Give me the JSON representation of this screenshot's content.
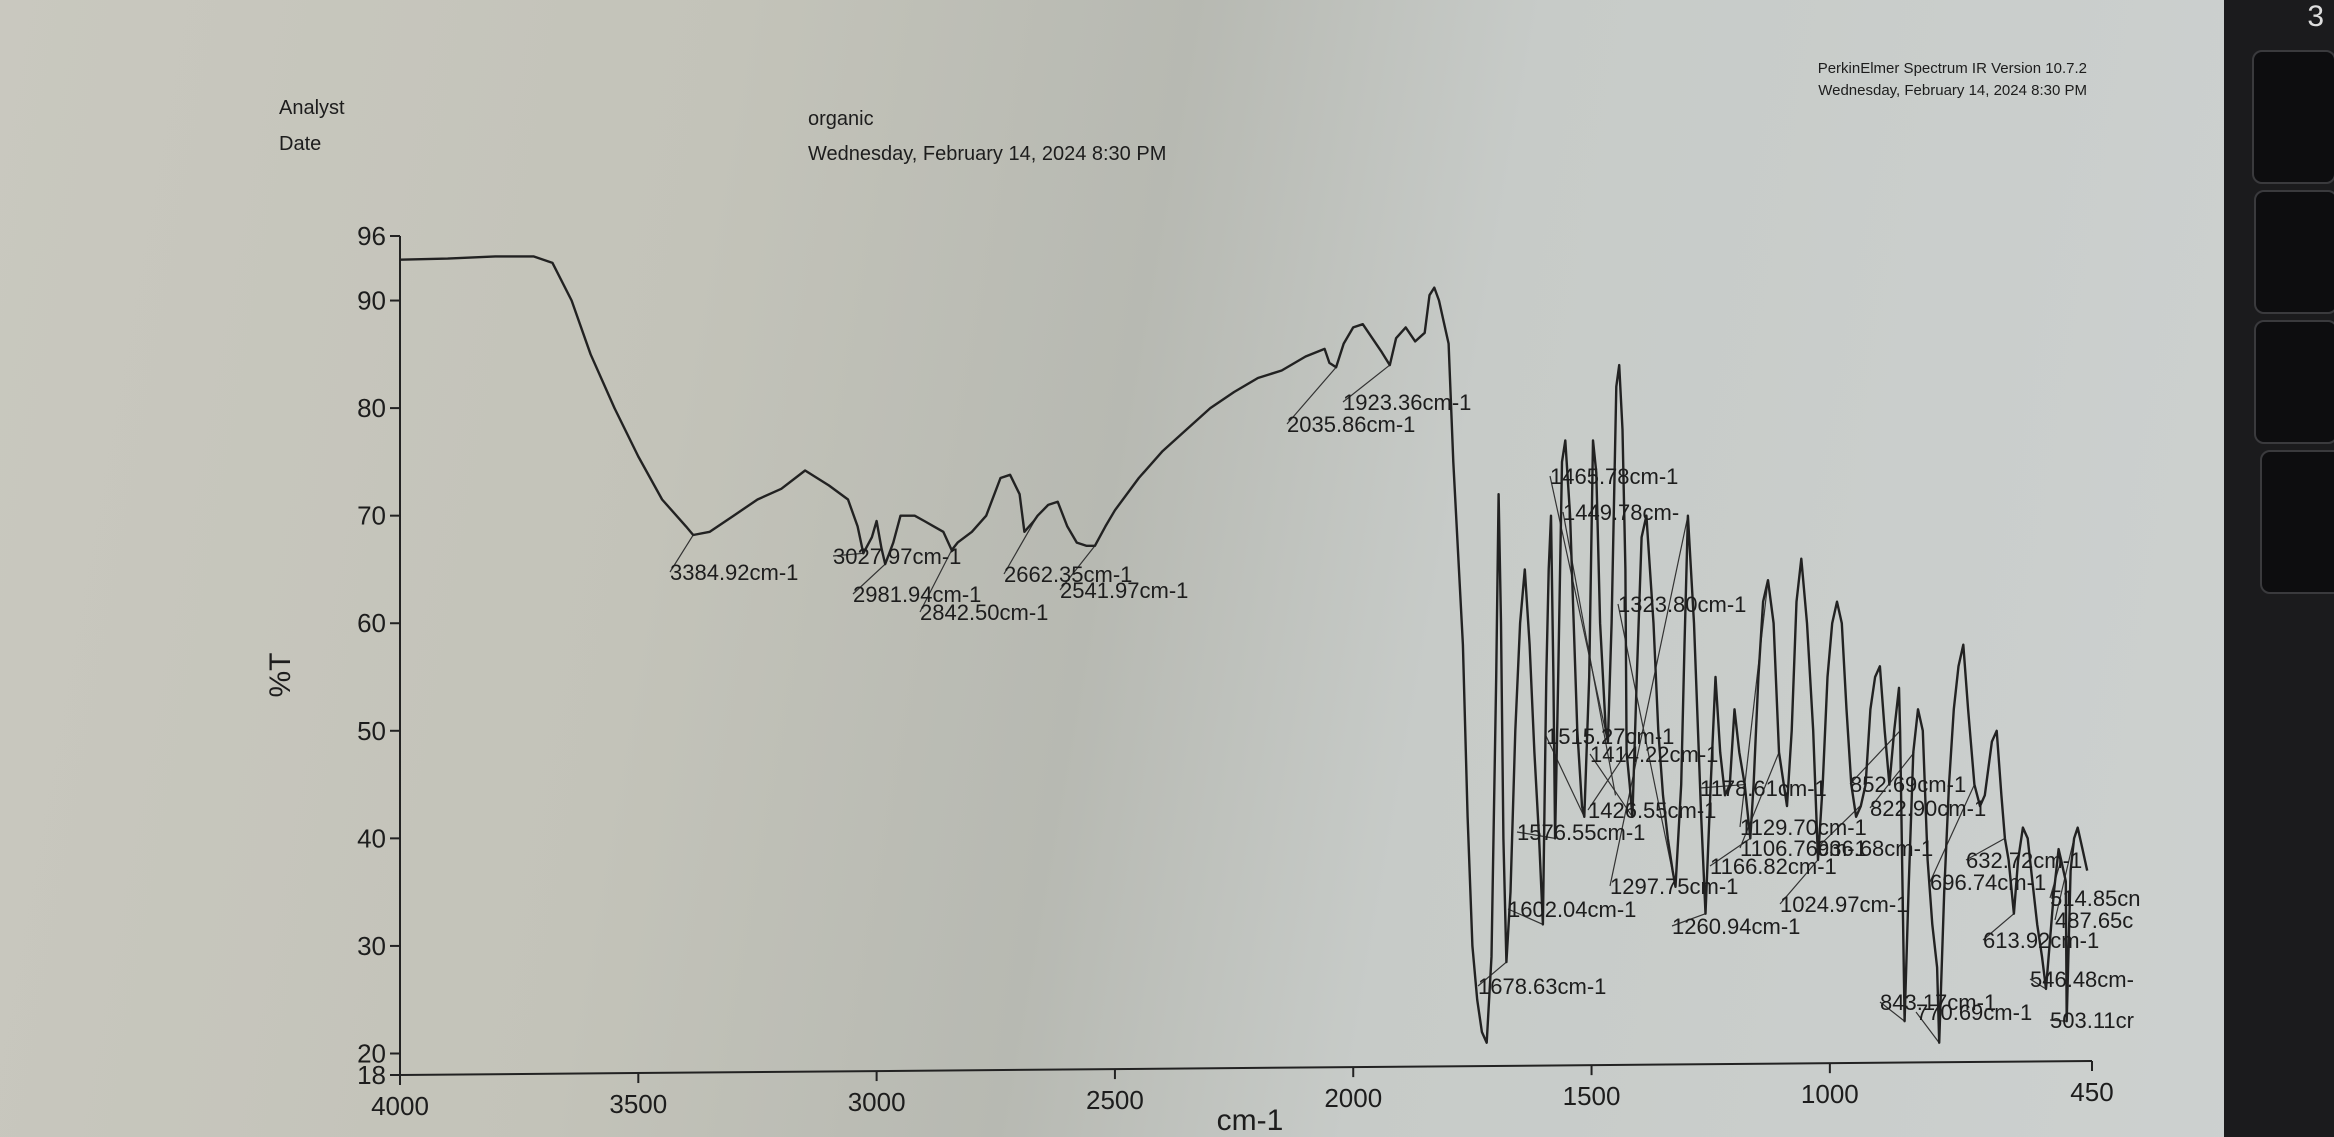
{
  "header": {
    "analyst_label": "Analyst",
    "date_label": "Date",
    "sample_name": "organic",
    "sample_date": "Wednesday, February 14, 2024 8:30 PM",
    "software": "PerkinElmer Spectrum IR Version 10.7.2",
    "software_date": "Wednesday, February 14, 2024 8:30 PM"
  },
  "keyboard": {
    "key_label": "3"
  },
  "chart_data": {
    "type": "line",
    "xlabel": "cm-1",
    "ylabel": "%T",
    "xlim": [
      4000,
      450
    ],
    "ylim": [
      18,
      96
    ],
    "x_ticks": [
      4000,
      3500,
      3000,
      2500,
      2000,
      1500,
      1000,
      450
    ],
    "y_ticks": [
      18,
      20,
      30,
      40,
      50,
      60,
      70,
      80,
      90,
      96
    ],
    "series": [
      {
        "points": [
          [
            4000,
            93.8
          ],
          [
            3900,
            93.9
          ],
          [
            3800,
            94.1
          ],
          [
            3720,
            94.1
          ],
          [
            3680,
            93.5
          ],
          [
            3640,
            90
          ],
          [
            3600,
            85
          ],
          [
            3550,
            80
          ],
          [
            3500,
            75.5
          ],
          [
            3450,
            71.5
          ],
          [
            3400,
            69
          ],
          [
            3384.92,
            68.2
          ],
          [
            3350,
            68.5
          ],
          [
            3300,
            70
          ],
          [
            3250,
            71.5
          ],
          [
            3200,
            72.5
          ],
          [
            3150,
            74.2
          ],
          [
            3100,
            72.8
          ],
          [
            3060,
            71.5
          ],
          [
            3040,
            69
          ],
          [
            3027.97,
            66.5
          ],
          [
            3010,
            68
          ],
          [
            3000,
            69.5
          ],
          [
            2990,
            67
          ],
          [
            2981.94,
            65.5
          ],
          [
            2965,
            67.5
          ],
          [
            2950,
            70
          ],
          [
            2920,
            70
          ],
          [
            2900,
            69.5
          ],
          [
            2880,
            69
          ],
          [
            2860,
            68.5
          ],
          [
            2842.5,
            66.8
          ],
          [
            2830,
            67.5
          ],
          [
            2800,
            68.5
          ],
          [
            2770,
            70
          ],
          [
            2740,
            73.5
          ],
          [
            2720,
            73.8
          ],
          [
            2700,
            72
          ],
          [
            2690,
            68.5
          ],
          [
            2670,
            69.5
          ],
          [
            2662.35,
            70
          ],
          [
            2640,
            71
          ],
          [
            2620,
            71.3
          ],
          [
            2600,
            69
          ],
          [
            2580,
            67.5
          ],
          [
            2560,
            67.2
          ],
          [
            2541.97,
            67.2
          ],
          [
            2520,
            69
          ],
          [
            2500,
            70.5
          ],
          [
            2450,
            73.5
          ],
          [
            2400,
            76
          ],
          [
            2350,
            78
          ],
          [
            2300,
            80
          ],
          [
            2250,
            81.5
          ],
          [
            2200,
            82.8
          ],
          [
            2150,
            83.5
          ],
          [
            2100,
            84.8
          ],
          [
            2060,
            85.5
          ],
          [
            2050,
            84.2
          ],
          [
            2035.86,
            83.8
          ],
          [
            2020,
            86
          ],
          [
            2000,
            87.5
          ],
          [
            1980,
            87.8
          ],
          [
            1960,
            86.5
          ],
          [
            1940,
            85.2
          ],
          [
            1923.36,
            84
          ],
          [
            1910,
            86.5
          ],
          [
            1890,
            87.5
          ],
          [
            1870,
            86.2
          ],
          [
            1850,
            87
          ],
          [
            1840,
            90.5
          ],
          [
            1830,
            91.2
          ],
          [
            1820,
            90
          ],
          [
            1810,
            88
          ],
          [
            1800,
            86
          ],
          [
            1790,
            75
          ],
          [
            1770,
            58
          ],
          [
            1760,
            42
          ],
          [
            1750,
            30
          ],
          [
            1740,
            25
          ],
          [
            1730,
            22
          ],
          [
            1720,
            21
          ],
          [
            1710,
            29
          ],
          [
            1700,
            55
          ],
          [
            1695,
            72
          ],
          [
            1690,
            60
          ],
          [
            1685,
            40
          ],
          [
            1678.63,
            28.5
          ],
          [
            1670,
            35
          ],
          [
            1660,
            50
          ],
          [
            1650,
            60
          ],
          [
            1640,
            65
          ],
          [
            1630,
            58
          ],
          [
            1620,
            48
          ],
          [
            1610,
            40
          ],
          [
            1602.04,
            32
          ],
          [
            1595,
            55
          ],
          [
            1590,
            65
          ],
          [
            1585,
            70
          ],
          [
            1580,
            55
          ],
          [
            1576.55,
            40
          ],
          [
            1570,
            55
          ],
          [
            1562,
            75
          ],
          [
            1555,
            77
          ],
          [
            1545,
            70
          ],
          [
            1530,
            50
          ],
          [
            1520,
            43
          ],
          [
            1515.27,
            42
          ],
          [
            1505,
            55
          ],
          [
            1497,
            77
          ],
          [
            1490,
            74
          ],
          [
            1482,
            60
          ],
          [
            1470,
            50
          ],
          [
            1465.78,
            49
          ],
          [
            1458,
            60
          ],
          [
            1448,
            82
          ],
          [
            1442,
            84
          ],
          [
            1435,
            78
          ],
          [
            1429,
            65
          ],
          [
            1426.55,
            48
          ],
          [
            1420,
            45
          ],
          [
            1414.22,
            42
          ],
          [
            1405,
            55
          ],
          [
            1395,
            68
          ],
          [
            1385,
            70
          ],
          [
            1370,
            60
          ],
          [
            1360,
            50
          ],
          [
            1350,
            44
          ],
          [
            1340,
            40
          ],
          [
            1330,
            37
          ],
          [
            1323.8,
            35.5
          ],
          [
            1312,
            45
          ],
          [
            1305,
            58
          ],
          [
            1297.75,
            70
          ],
          [
            1285,
            60
          ],
          [
            1270,
            42
          ],
          [
            1260.94,
            33
          ],
          [
            1250,
            45
          ],
          [
            1240,
            55
          ],
          [
            1230,
            48
          ],
          [
            1220,
            44
          ],
          [
            1210,
            45
          ],
          [
            1200,
            52
          ],
          [
            1190,
            48
          ],
          [
            1178.61,
            45
          ],
          [
            1166.82,
            40
          ],
          [
            1160,
            45
          ],
          [
            1150,
            55
          ],
          [
            1140,
            62
          ],
          [
            1129.7,
            64
          ],
          [
            1118,
            60
          ],
          [
            1106.76,
            48
          ],
          [
            1090,
            43
          ],
          [
            1080,
            50
          ],
          [
            1070,
            62
          ],
          [
            1060,
            66
          ],
          [
            1048,
            60
          ],
          [
            1035,
            50
          ],
          [
            1024.97,
            38
          ],
          [
            1015,
            45
          ],
          [
            1005,
            55
          ],
          [
            995,
            60
          ],
          [
            985,
            62
          ],
          [
            975,
            60
          ],
          [
            965,
            52
          ],
          [
            955,
            45
          ],
          [
            945,
            42
          ],
          [
            935,
            43
          ],
          [
            925,
            45
          ],
          [
            915,
            52
          ],
          [
            905,
            55
          ],
          [
            895,
            56
          ],
          [
            885,
            50
          ],
          [
            875,
            45
          ],
          [
            865,
            50
          ],
          [
            855,
            54
          ],
          [
            852.69,
            50
          ],
          [
            843.17,
            23
          ],
          [
            835,
            35
          ],
          [
            825,
            48
          ],
          [
            815,
            52
          ],
          [
            805,
            50
          ],
          [
            795,
            38
          ],
          [
            785,
            32
          ],
          [
            775,
            28
          ],
          [
            770.69,
            21
          ],
          [
            760,
            35
          ],
          [
            750,
            45
          ],
          [
            740,
            52
          ],
          [
            730,
            56
          ],
          [
            720,
            58
          ],
          [
            710,
            52
          ],
          [
            696.74,
            45
          ],
          [
            685,
            43
          ],
          [
            675,
            44
          ],
          [
            660,
            49
          ],
          [
            650,
            50
          ],
          [
            640,
            44
          ],
          [
            632.72,
            40
          ],
          [
            625,
            38
          ],
          [
            613.92,
            33
          ],
          [
            605,
            38
          ],
          [
            595,
            41
          ],
          [
            585,
            40
          ],
          [
            575,
            36
          ],
          [
            565,
            32
          ],
          [
            555,
            29
          ],
          [
            546.48,
            26
          ],
          [
            530,
            35
          ],
          [
            520,
            39
          ],
          [
            514.85,
            38
          ],
          [
            505,
            36
          ],
          [
            503.11,
            23
          ],
          [
            495,
            37
          ],
          [
            487.65,
            40
          ],
          [
            480,
            41
          ],
          [
            470,
            39
          ],
          [
            460,
            37
          ]
        ]
      }
    ],
    "annotations": [
      {
        "x": 3384.92,
        "y": 68.2,
        "label": "3384.92cm-1"
      },
      {
        "x": 3027.97,
        "y": 66.5,
        "label": "3027.97cm-1"
      },
      {
        "x": 2981.94,
        "y": 65.5,
        "label": "2981.94cm-1"
      },
      {
        "x": 2842.5,
        "y": 66.8,
        "label": "2842.50cm-1"
      },
      {
        "x": 2662.35,
        "y": 70,
        "label": "2662.35cm-1"
      },
      {
        "x": 2541.97,
        "y": 67.2,
        "label": "2541.97cm-1"
      },
      {
        "x": 2035.86,
        "y": 83.8,
        "label": "2035.86cm-1"
      },
      {
        "x": 1923.36,
        "y": 84,
        "label": "1923.36cm-1"
      },
      {
        "x": 1678.63,
        "y": 28.5,
        "label": "1678.63cm-1"
      },
      {
        "x": 1602.04,
        "y": 32,
        "label": "1602.04cm-1"
      },
      {
        "x": 1576.55,
        "y": 40,
        "label": "1576.55cm-1"
      },
      {
        "x": 1515.27,
        "y": 42,
        "label": "1515.27cm-1"
      },
      {
        "x": 1465.78,
        "y": 49,
        "label": "1465.78cm-1"
      },
      {
        "x": 1449.78,
        "y": 44,
        "label": "1449.78cm-"
      },
      {
        "x": 1426.55,
        "y": 48,
        "label": "1426.55cm-1"
      },
      {
        "x": 1414.22,
        "y": 42,
        "label": "1414.22cm-1"
      },
      {
        "x": 1323.8,
        "y": 35.5,
        "label": "1323.80cm-1"
      },
      {
        "x": 1297.75,
        "y": 70,
        "label": "1297.75cm-1"
      },
      {
        "x": 1260.94,
        "y": 33,
        "label": "1260.94cm-1"
      },
      {
        "x": 1178.61,
        "y": 45,
        "label": "1178.61cm-1"
      },
      {
        "x": 1166.82,
        "y": 40,
        "label": "1166.82cm-1"
      },
      {
        "x": 1129.7,
        "y": 64,
        "label": "1129.70cm-1"
      },
      {
        "x": 1106.76,
        "y": 48,
        "label": "1106.76cm-1"
      },
      {
        "x": 1024.97,
        "y": 38,
        "label": "1024.97cm-1"
      },
      {
        "x": 936.68,
        "y": 43,
        "label": "936.68cm-1"
      },
      {
        "x": 852.69,
        "y": 50,
        "label": "852.69cm-1"
      },
      {
        "x": 843.17,
        "y": 23,
        "label": "843.17cm-1"
      },
      {
        "x": 822.9,
        "y": 48,
        "label": "822.90cm-1"
      },
      {
        "x": 770.69,
        "y": 21,
        "label": "770.69cm-1"
      },
      {
        "x": 696.74,
        "y": 45,
        "label": "696.74cm-1"
      },
      {
        "x": 632.72,
        "y": 40,
        "label": "632.72cm-1"
      },
      {
        "x": 613.92,
        "y": 33,
        "label": "613.92cm-1"
      },
      {
        "x": 546.48,
        "y": 26,
        "label": "546.48cm-"
      },
      {
        "x": 514.85,
        "y": 38,
        "label": "514.85cn"
      },
      {
        "x": 503.11,
        "y": 23,
        "label": "503.11cr"
      },
      {
        "x": 487.65,
        "y": 40,
        "label": "487.65c"
      }
    ]
  }
}
